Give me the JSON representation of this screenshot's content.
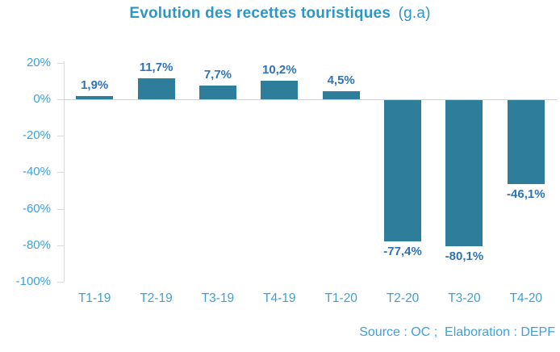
{
  "chart_data": {
    "type": "bar",
    "title": "Evolution des recettes touristiques",
    "title_suffix": "(g.a)",
    "categories": [
      "T1-19",
      "T2-19",
      "T3-19",
      "T4-19",
      "T1-20",
      "T2-20",
      "T3-20",
      "T4-20"
    ],
    "values": [
      1.9,
      11.7,
      7.7,
      10.2,
      4.5,
      -77.4,
      -80.1,
      -46.1
    ],
    "value_labels": [
      "1,9%",
      "11,7%",
      "7,7%",
      "10,2%",
      "4,5%",
      "-77,4%",
      "-80,1%",
      "-46,1%"
    ],
    "xlabel": "",
    "ylabel": "",
    "ylim": [
      -100,
      20
    ],
    "ytick_values": [
      20,
      0,
      -20,
      -40,
      -60,
      -80,
      -100
    ],
    "ytick_labels": [
      "20%",
      "0%",
      "-20%",
      "-40%",
      "-60%",
      "-80%",
      "-100%"
    ],
    "grid": "zero-line-only",
    "legend": "none",
    "source_note": "Source : OC ;  Elaboration : DEPF",
    "colors": {
      "bar": "#2E7D9A",
      "title": "#2E96C5",
      "axis_labels": "#3FA0D6",
      "value_labels": "#2E74B5",
      "axis_line": "#D9D9D9",
      "zero_line": "#D0D0D0",
      "source_text": "#3FA0D6"
    }
  }
}
